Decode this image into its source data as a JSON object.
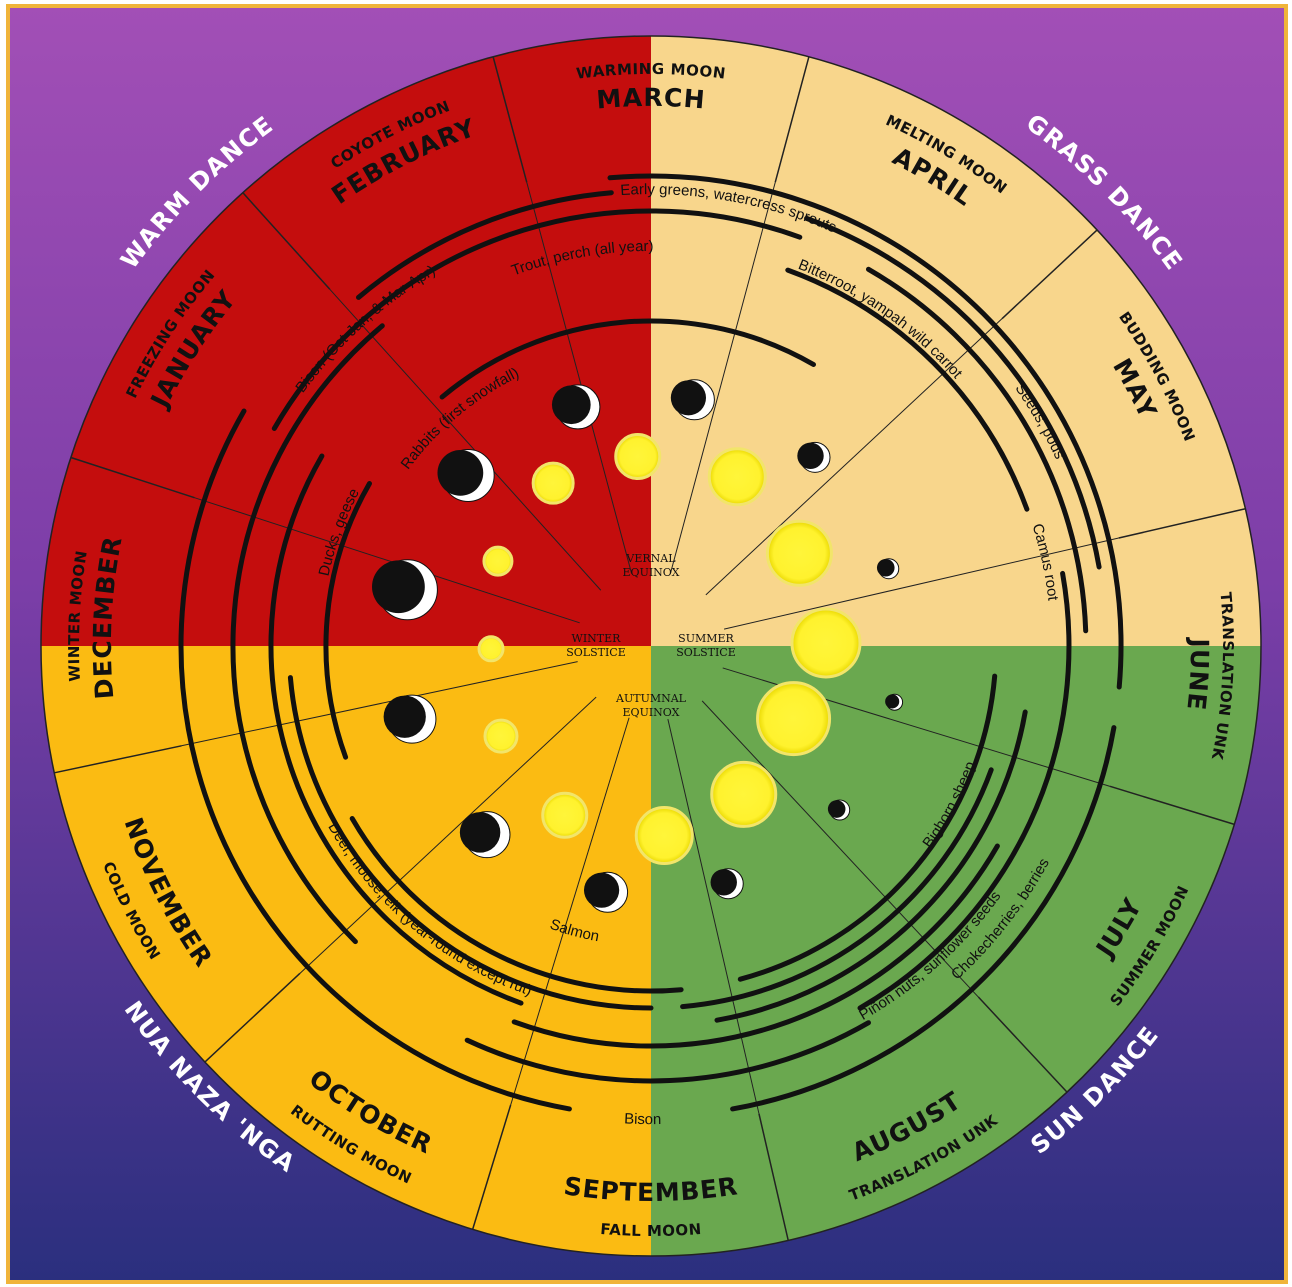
{
  "diagram": {
    "colors": {
      "bg_top": "#a050b8",
      "bg_bottom": "#2e2f80",
      "frame": "#f0b43a",
      "winter_quadrant": "#c40d0d",
      "spring_quadrant": "#f8d68c",
      "summer_quadrant": "#6aa84f",
      "fall_quadrant": "#fbbb12",
      "sun": "#fff22e"
    },
    "dances": [
      {
        "label": "WARM DANCE"
      },
      {
        "label": "GRASS DANCE"
      },
      {
        "label": "SUN DANCE"
      },
      {
        "label": "NUA NAZA 'NGA"
      }
    ],
    "months": [
      {
        "name": "MARCH",
        "moon": "WARMING MOON"
      },
      {
        "name": "APRIL",
        "moon": "MELTING MOON"
      },
      {
        "name": "MAY",
        "moon": "BUDDING MOON"
      },
      {
        "name": "JUNE",
        "moon": "TRANSLATION UNK"
      },
      {
        "name": "JULY",
        "moon": "SUMMER MOON"
      },
      {
        "name": "AUGUST",
        "moon": "TRANSLATION UNK"
      },
      {
        "name": "SEPTEMBER",
        "moon": "FALL MOON"
      },
      {
        "name": "OCTOBER",
        "moon": "RUTTING MOON"
      },
      {
        "name": "NOVEMBER",
        "moon": "COLD MOON"
      },
      {
        "name": "DECEMBER",
        "moon": "WINTER MOON"
      },
      {
        "name": "JANUARY",
        "moon": "FREEZING MOON"
      },
      {
        "name": "FEBRUARY",
        "moon": "COYOTE MOON"
      }
    ],
    "resources": [
      {
        "label": "Early greens, watercress sprouts"
      },
      {
        "label": "Seeds, pods"
      },
      {
        "label": "Bitterroot, yampah wild carrot"
      },
      {
        "label": "Camus root"
      },
      {
        "label": "Trout, perch (all year)"
      },
      {
        "label": "Bison (Oct-Jan, & Mar-Apr)"
      },
      {
        "label": "Rabbits (first snowfall)"
      },
      {
        "label": "Ducks, geese"
      },
      {
        "label": "Deer, moose, elk (year-round except rut)"
      },
      {
        "label": "Salmon"
      },
      {
        "label": "Bison"
      },
      {
        "label": "Piñon nuts, sunflower seeds"
      },
      {
        "label": "Chokecherries, berries"
      },
      {
        "label": "Bighorn sheep"
      }
    ],
    "center_labels": {
      "vernal": [
        "VERNAL",
        "EQUINOX"
      ],
      "summer": [
        "SUMMER",
        "SOLSTICE"
      ],
      "autumnal": [
        "AUTUMNAL",
        "EQUINOX"
      ],
      "winter": [
        "WINTER",
        "SOLSTICE"
      ]
    }
  }
}
